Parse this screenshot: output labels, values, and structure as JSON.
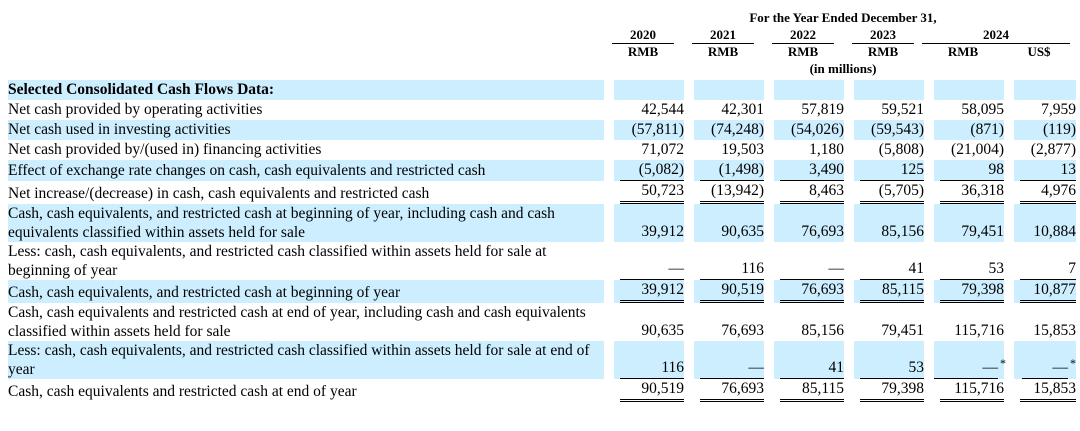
{
  "header": {
    "period": "For the Year Ended December 31,",
    "years": [
      "2020",
      "2021",
      "2022",
      "2023",
      "2024"
    ],
    "currency_rmb": "RMB",
    "currency_usd": "US$",
    "unit_note": "(in millions)"
  },
  "section_title": "Selected Consolidated Cash Flows Data:",
  "rows": [
    {
      "label": "Net cash provided by operating activities",
      "values": [
        "42,544",
        "42,301",
        "57,819",
        "59,521",
        "58,095",
        "7,959"
      ]
    },
    {
      "label": "Net cash used in investing activities",
      "values": [
        "(57,811)",
        "(74,248)",
        "(54,026)",
        "(59,543)",
        "(871)",
        "(119)"
      ]
    },
    {
      "label": "Net cash provided by/(used in) financing activities",
      "values": [
        "71,072",
        "19,503",
        "1,180",
        "(5,808)",
        "(21,004)",
        "(2,877)"
      ]
    },
    {
      "label": "Effect of exchange rate changes on cash, cash equivalents and restricted cash",
      "values": [
        "(5,082)",
        "(1,498)",
        "3,490",
        "125",
        "98",
        "13"
      ]
    },
    {
      "label": "Net increase/(decrease) in cash, cash equivalents and restricted cash",
      "values": [
        "50,723",
        "(13,942)",
        "8,463",
        "(5,705)",
        "36,318",
        "4,976"
      ]
    },
    {
      "label": "Cash, cash equivalents, and restricted cash at beginning of year, including cash and cash equivalents classified within assets held for sale",
      "values": [
        "39,912",
        "90,635",
        "76,693",
        "85,156",
        "79,451",
        "10,884"
      ]
    },
    {
      "label": "Less: cash, cash equivalents, and restricted cash classified within assets held for sale at beginning of year",
      "values": [
        "—",
        "116",
        "—",
        "41",
        "53",
        "7"
      ]
    },
    {
      "label": "Cash, cash equivalents, and restricted cash at beginning of year",
      "values": [
        "39,912",
        "90,519",
        "76,693",
        "85,115",
        "79,398",
        "10,877"
      ]
    },
    {
      "label": "Cash, cash equivalents and restricted cash at end of year, including cash and cash equivalents classified within assets held for sale",
      "values": [
        "90,635",
        "76,693",
        "85,156",
        "79,451",
        "115,716",
        "15,853"
      ]
    },
    {
      "label": "Less: cash, cash equivalents, and restricted cash classified within assets held for sale at end of year",
      "values": [
        "116",
        "—",
        "41",
        "53",
        "—",
        "—"
      ],
      "footnote_mark": "*"
    },
    {
      "label": "Cash, cash equivalents and restricted cash at end of year",
      "values": [
        "90,519",
        "76,693",
        "85,115",
        "79,398",
        "115,716",
        "15,853"
      ]
    }
  ]
}
